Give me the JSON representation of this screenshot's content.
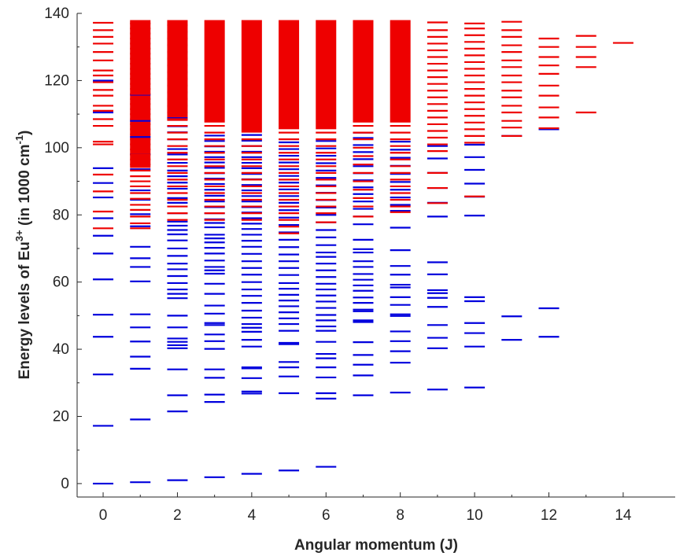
{
  "chart_data": {
    "type": "scatter",
    "title": "",
    "xlabel": "Angular momentum (J)",
    "ylabel": {
      "prefix": "Energy levels of Eu",
      "sup1": "3+",
      "middle": " (in 1000 cm",
      "sup2": "-1",
      "suffix": ")"
    },
    "xlim": [
      -0.7,
      15.4
    ],
    "ylim": [
      -4,
      140
    ],
    "x_ticks": [
      0,
      2,
      4,
      6,
      8,
      10,
      12,
      14
    ],
    "y_ticks": [
      0,
      20,
      40,
      60,
      80,
      100,
      120,
      140
    ],
    "grid": false,
    "legend": "none",
    "series": [
      {
        "color": "#0000dd",
        "levels": [
          {
            "J": 0,
            "E": [
              0,
              17.2,
              32.5,
              43.7,
              50.3,
              60.8,
              68.5,
              73.8,
              79,
              85.2,
              89.5,
              93.9,
              110.5,
              120
            ]
          },
          {
            "J": 1,
            "E": [
              0.4,
              19.1,
              34.2,
              37.8,
              42.3,
              46.5,
              50.4,
              60.2,
              64.5,
              67.1,
              70.5,
              76.6,
              80.2,
              84.5,
              87.3,
              93.6,
              98,
              103.2,
              108,
              115.8
            ]
          },
          {
            "J": 2,
            "E": [
              1,
              21.5,
              26.3,
              34,
              40.3,
              41.2,
              42.2,
              43.2,
              46.5,
              50,
              55.2,
              56.5,
              57.8,
              59.7,
              61.8,
              63.8,
              65.5,
              67.8,
              70,
              72.4,
              74.2,
              75.5,
              76.8,
              78,
              80.5,
              83.6,
              85,
              87.8,
              89.6,
              91.5,
              93.2,
              95.5,
              98,
              99.6,
              102.5,
              104.6,
              106.4,
              108.8
            ]
          },
          {
            "J": 3,
            "E": [
              1.9,
              24.3,
              26.5,
              31.5,
              34,
              40.1,
              42.4,
              44.4,
              47.2,
              47.8,
              50.6,
              53,
              56.5,
              59.5,
              62.5,
              63.5,
              64.5,
              66.4,
              68.5,
              70.2,
              71.8,
              73,
              74.1,
              76.3,
              77.6,
              78.7,
              80.5,
              82.3,
              84,
              85.7,
              87.5,
              89.2,
              90.8,
              92.4,
              94,
              95.6,
              97.2,
              98.8,
              100.4,
              102,
              103.6
            ]
          },
          {
            "J": 4,
            "E": [
              2.9,
              26.8,
              27.4,
              31.4,
              34.3,
              34.6,
              40.8,
              42.8,
              45.2,
              46.4,
              47.5,
              49.4,
              51.5,
              53.8,
              55.9,
              57.8,
              60,
              62.2,
              64.2,
              66.2,
              68.4,
              70.5,
              72.3,
              74.1,
              75.8,
              77.4,
              79,
              80.7,
              82.3,
              84,
              85.6,
              87.3,
              88.9,
              90.6,
              92.2,
              93.9,
              95.5,
              97.2,
              98.8,
              100.5,
              102.1,
              103.8
            ]
          },
          {
            "J": 5,
            "E": [
              3.9,
              26.9,
              31.9,
              34.6,
              36.2,
              41.5,
              41.9,
              45.5,
              47.5,
              49.2,
              51,
              52.8,
              54.5,
              56.2,
              58,
              59.7,
              62.1,
              64.2,
              66.2,
              68.2,
              70.4,
              72.6,
              74.8,
              77,
              79.2,
              81.4,
              83.6,
              85.6,
              87.6,
              89.6,
              91.6,
              93.6,
              95.6,
              97.6,
              99.6,
              101.6
            ]
          },
          {
            "J": 6,
            "E": [
              5,
              25.3,
              26.9,
              31.6,
              34.6,
              37.3,
              38.6,
              42.2,
              45.5,
              46.8,
              48.6,
              50.2,
              52.3,
              54.2,
              56,
              57.8,
              59.5,
              61.5,
              63.5,
              65.5,
              67.5,
              68.8,
              71,
              73.3,
              75.5,
              77.8,
              80,
              82.2,
              84.4,
              86.6,
              88.8,
              91,
              93.2,
              95.4,
              97.6,
              99.8,
              102
            ]
          },
          {
            "J": 7,
            "E": [
              26.3,
              32.2,
              35.4,
              38.3,
              42.1,
              48.1,
              48.6,
              51.3,
              51.8,
              53.8,
              55.4,
              57.4,
              59,
              60.7,
              62.4,
              64.5,
              66.2,
              68.8,
              69.8,
              72.6,
              77.2,
              79.5,
              81.8,
              84,
              86.2,
              88.2,
              90.3,
              92.4,
              94.5,
              96.6,
              98.7,
              100.8,
              102.9,
              104.5
            ]
          },
          {
            "J": 8,
            "E": [
              27.1,
              36,
              39.4,
              42.4,
              45.3,
              49.9,
              50.4,
              53.2,
              55.5,
              58.4,
              59.2,
              62.2,
              64.8,
              69.5,
              76.2,
              81.2,
              83,
              85.2,
              87.5,
              89.8,
              92.2,
              94.6,
              97,
              99.4,
              101.8
            ]
          },
          {
            "J": 9,
            "E": [
              28,
              40.3,
              43.4,
              47.2,
              52.6,
              55.3,
              56.7,
              57.6,
              62.3,
              65.9,
              79.5,
              83.6,
              88,
              92.5,
              96.8,
              100.5
            ]
          },
          {
            "J": 10,
            "E": [
              28.6,
              40.8,
              44.8,
              47.8,
              54.3,
              55.5,
              79.8,
              85.4,
              89.3,
              93.4,
              97.2,
              100.9
            ]
          },
          {
            "J": 11,
            "E": [
              42.8,
              49.8,
              103.5
            ]
          },
          {
            "J": 12,
            "E": [
              43.7,
              52.2,
              105.5
            ]
          }
        ]
      },
      {
        "color": "#ee0000",
        "levels": [
          {
            "J": 0,
            "E": [
              76,
              81,
              87,
              92,
              101,
              101.8,
              106.5,
              108.5,
              111,
              112.5,
              115.5,
              117.2,
              119.5,
              121.5,
              123,
              126,
              128.5,
              131,
              133,
              135,
              137.2
            ]
          },
          {
            "J": 1,
            "E": [
              76,
              77.5,
              79.5,
              81.5,
              83,
              84.8,
              86.5,
              88.5,
              90,
              91.5,
              93.2,
              95,
              96.5,
              98,
              99.5,
              101,
              102.5,
              104,
              105.5,
              107,
              108.5,
              110,
              111.5,
              113,
              114.5,
              116,
              117.5,
              119,
              120.5,
              122,
              123.5,
              125,
              126.5,
              128,
              129.5,
              131,
              132.5,
              134,
              135.5,
              137
            ]
          },
          {
            "J": 2,
            "E": [
              78.5,
              80.5,
              82.5,
              84.5,
              86.5,
              88.5,
              90.5,
              92.5,
              94.5,
              96.5,
              98.5,
              100.5,
              102.5,
              104.5,
              106.5,
              108.5,
              110.5,
              112.5,
              114.5,
              116.5,
              118.5,
              120.5,
              122.5,
              124.5,
              126.5,
              128.5,
              130.5,
              132.5,
              134.5,
              136.5
            ]
          },
          {
            "J": 3,
            "E": [
              78.5,
              80.5,
              82.5,
              84.5,
              86.5,
              88.5,
              90.5,
              92.5,
              94.5,
              96.5,
              98.5,
              100.5,
              102.5,
              104.5,
              106.5
            ]
          },
          {
            "J": 4,
            "E": [
              78.5,
              80.5,
              82.5,
              84.5,
              86.5,
              88.5,
              90.5,
              92.5,
              94.5,
              96.5,
              98.5,
              100.5,
              102.5
            ]
          },
          {
            "J": 5,
            "E": [
              74.5,
              76.5,
              78.5,
              80.5,
              82.5,
              84.5,
              86.5,
              88.5,
              90.5,
              92.5,
              94.5,
              96.5,
              98.5,
              100.5,
              102.5,
              104.5
            ]
          },
          {
            "J": 6,
            "E": [
              77.8,
              80.5,
              82.5,
              84.5,
              86.5,
              88.5,
              90.5,
              92.5,
              94.5,
              96.5,
              98.5,
              100.5,
              102.5,
              104.5
            ]
          },
          {
            "J": 7,
            "E": [
              79.5,
              82.5,
              85,
              87.5,
              90,
              92.5,
              95,
              97.5,
              100,
              102.5,
              104.5,
              106.5
            ]
          },
          {
            "J": 8,
            "E": [
              80.8,
              82.5,
              84.5,
              86.5,
              88.5,
              90.5,
              92.5,
              94.5,
              96.5,
              98.5,
              100.5,
              102.5,
              104.5,
              106.5
            ]
          },
          {
            "J": 9,
            "E": [
              83.5,
              88,
              92.5,
              99,
              101,
              103,
              105,
              107,
              109,
              111,
              113,
              115,
              117,
              119,
              121,
              123,
              125,
              127,
              129,
              131,
              133,
              135,
              137.3
            ]
          },
          {
            "J": 10,
            "E": [
              85.5,
              101.5,
              103.5,
              105.5,
              107.5,
              109.5,
              111.5,
              113.5,
              115.5,
              117.5,
              119.5,
              121.5,
              123.5,
              125.5,
              127.5,
              129.5,
              131.5,
              133.5,
              135.5,
              137
            ]
          },
          {
            "J": 11,
            "E": [
              103.5,
              106,
              108,
              110.5,
              112.5,
              115,
              117,
              119.5,
              121.5,
              124,
              126,
              128.5,
              130.5,
              133,
              135,
              137.5
            ]
          },
          {
            "J": 12,
            "E": [
              105.8,
              109,
              112,
              115.5,
              118.5,
              122,
              124.5,
              127,
              130,
              132.5
            ]
          },
          {
            "J": 13,
            "E": [
              110.5,
              124,
              127,
              130,
              133.3
            ]
          },
          {
            "J": 14,
            "E": [
              131.2
            ]
          }
        ],
        "dense_bands": [
          {
            "J": 1,
            "E_from": 94,
            "E_to": 138
          },
          {
            "J": 2,
            "E_from": 108,
            "E_to": 138
          },
          {
            "J": 3,
            "E_from": 107.5,
            "E_to": 138
          },
          {
            "J": 4,
            "E_from": 104.5,
            "E_to": 138
          },
          {
            "J": 5,
            "E_from": 105.5,
            "E_to": 138
          },
          {
            "J": 6,
            "E_from": 105.5,
            "E_to": 138
          },
          {
            "J": 7,
            "E_from": 107.5,
            "E_to": 138
          },
          {
            "J": 8,
            "E_from": 107.5,
            "E_to": 138
          }
        ]
      }
    ]
  }
}
